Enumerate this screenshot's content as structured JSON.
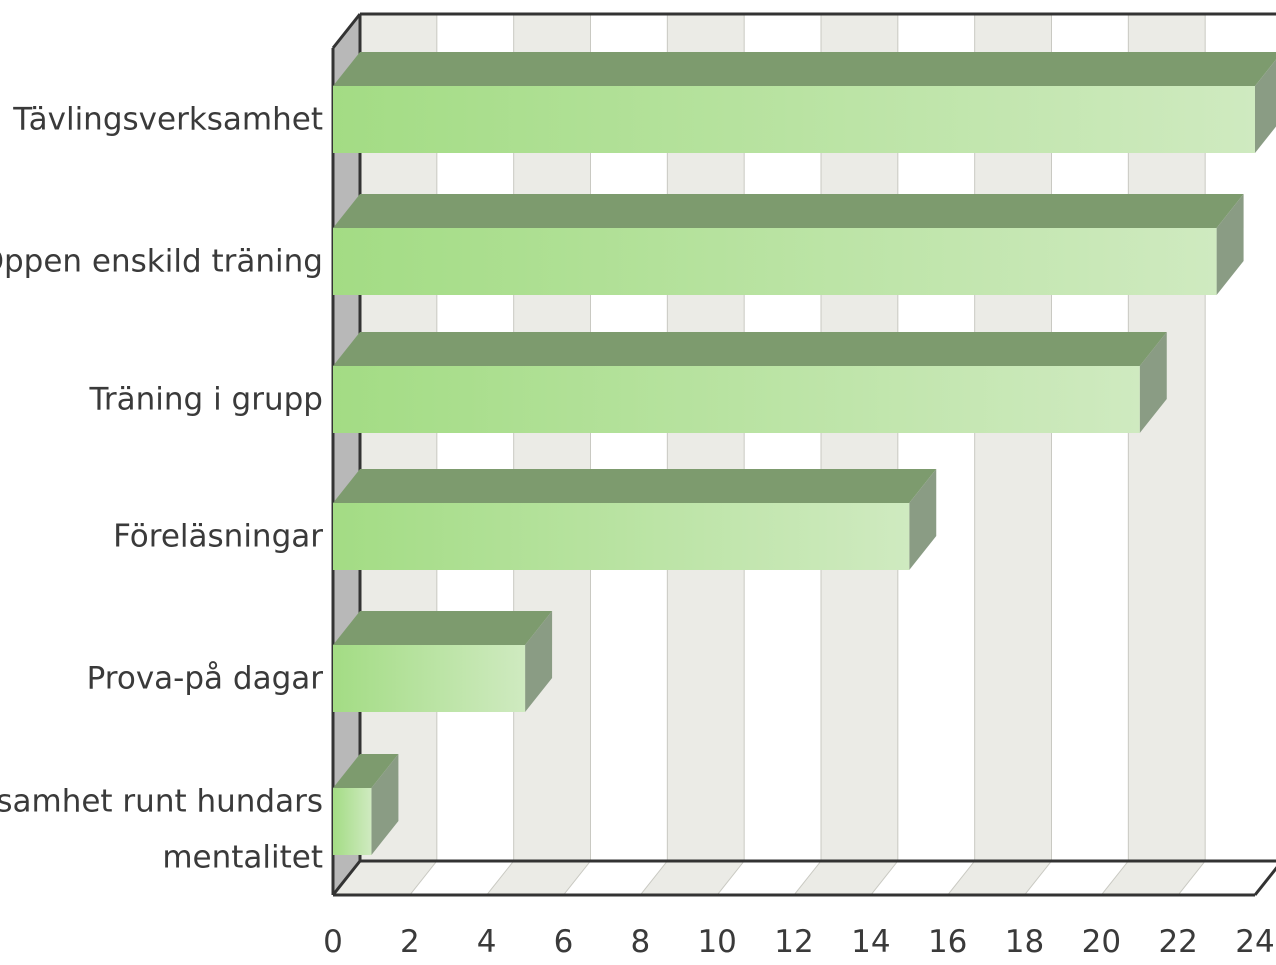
{
  "chart_data": {
    "type": "bar",
    "orientation": "horizontal",
    "style": "3d",
    "title": "",
    "xlabel": "",
    "ylabel": "",
    "categories": [
      [
        "Tävlingsverksamhet"
      ],
      [
        "Öppen enskild träning"
      ],
      [
        "Träning i grupp"
      ],
      [
        "Föreläsningar"
      ],
      [
        "Prova-på dagar"
      ],
      [
        "Verksamhet runt hundars",
        "mentalitet"
      ]
    ],
    "values": [
      24,
      23,
      21,
      15,
      5,
      1
    ],
    "xlim": [
      0,
      24
    ],
    "ticks": [
      0,
      2,
      4,
      6,
      8,
      10,
      12,
      14,
      16,
      18,
      20,
      22,
      24
    ],
    "tick_labels": [
      "0",
      "2",
      "4",
      "6",
      "8",
      "10",
      "12",
      "14",
      "16",
      "18",
      "20",
      "22",
      "24"
    ],
    "grid": true,
    "legend": "none",
    "colors": {
      "bar_front_start": "#a3dc84",
      "bar_front_end": "#cfeac0",
      "bar_top": "#7d9b6e",
      "bar_side": "#8a9c84",
      "band_shaded": "#ebebe6",
      "band_plain": "#ffffff",
      "frame": "#333333",
      "wall_left": "#b8b8b8"
    }
  }
}
